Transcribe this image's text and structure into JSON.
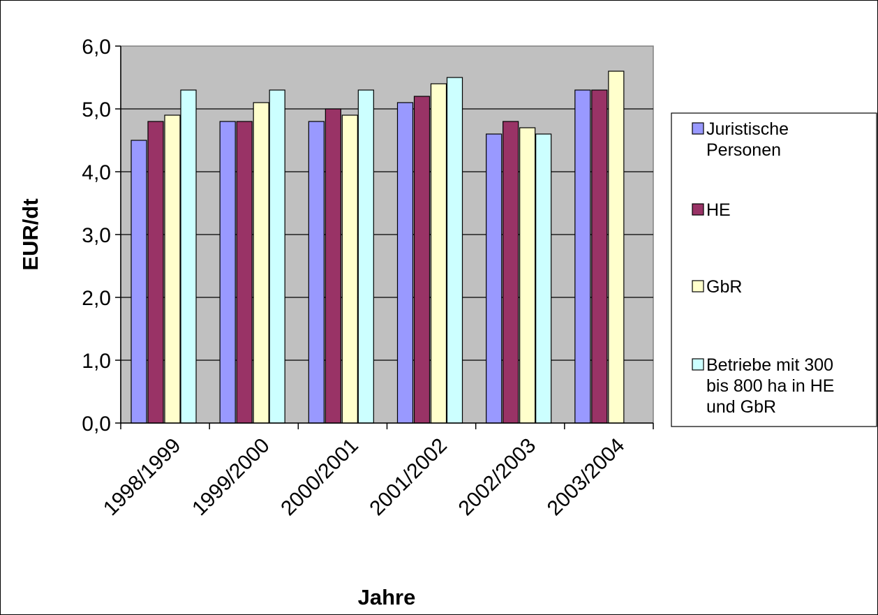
{
  "chart_data": {
    "type": "bar",
    "title": "",
    "xlabel": "Jahre",
    "ylabel": "EUR/dt",
    "ylim": [
      0,
      6
    ],
    "yticks": [
      "0,0",
      "1,0",
      "2,0",
      "3,0",
      "4,0",
      "5,0",
      "6,0"
    ],
    "grid": true,
    "legend_position": "right",
    "plot_background": "#C0C0C0",
    "categories": [
      "1998/1999",
      "1999/2000",
      "2000/2001",
      "2001/2002",
      "2002/2003",
      "2003/2004"
    ],
    "series": [
      {
        "name": "Juristische Personen",
        "legend_lines": [
          "Juristische",
          "Personen"
        ],
        "color": "#9999FF",
        "values": [
          4.5,
          4.8,
          4.8,
          5.1,
          4.6,
          5.3
        ]
      },
      {
        "name": "HE",
        "legend_lines": [
          "HE"
        ],
        "color": "#993366",
        "values": [
          4.8,
          4.8,
          5.0,
          5.2,
          4.8,
          5.3
        ]
      },
      {
        "name": "GbR",
        "legend_lines": [
          "GbR"
        ],
        "color": "#FFFFCC",
        "values": [
          4.9,
          5.1,
          4.9,
          5.4,
          4.7,
          5.6
        ]
      },
      {
        "name": "Betriebe mit 300 bis 800 ha in HE und GbR",
        "legend_lines": [
          "Betriebe mit 300",
          "bis 800 ha in HE",
          "und GbR"
        ],
        "color": "#CCFFFF",
        "values": [
          5.3,
          5.3,
          5.3,
          5.5,
          4.6,
          null
        ]
      }
    ]
  }
}
